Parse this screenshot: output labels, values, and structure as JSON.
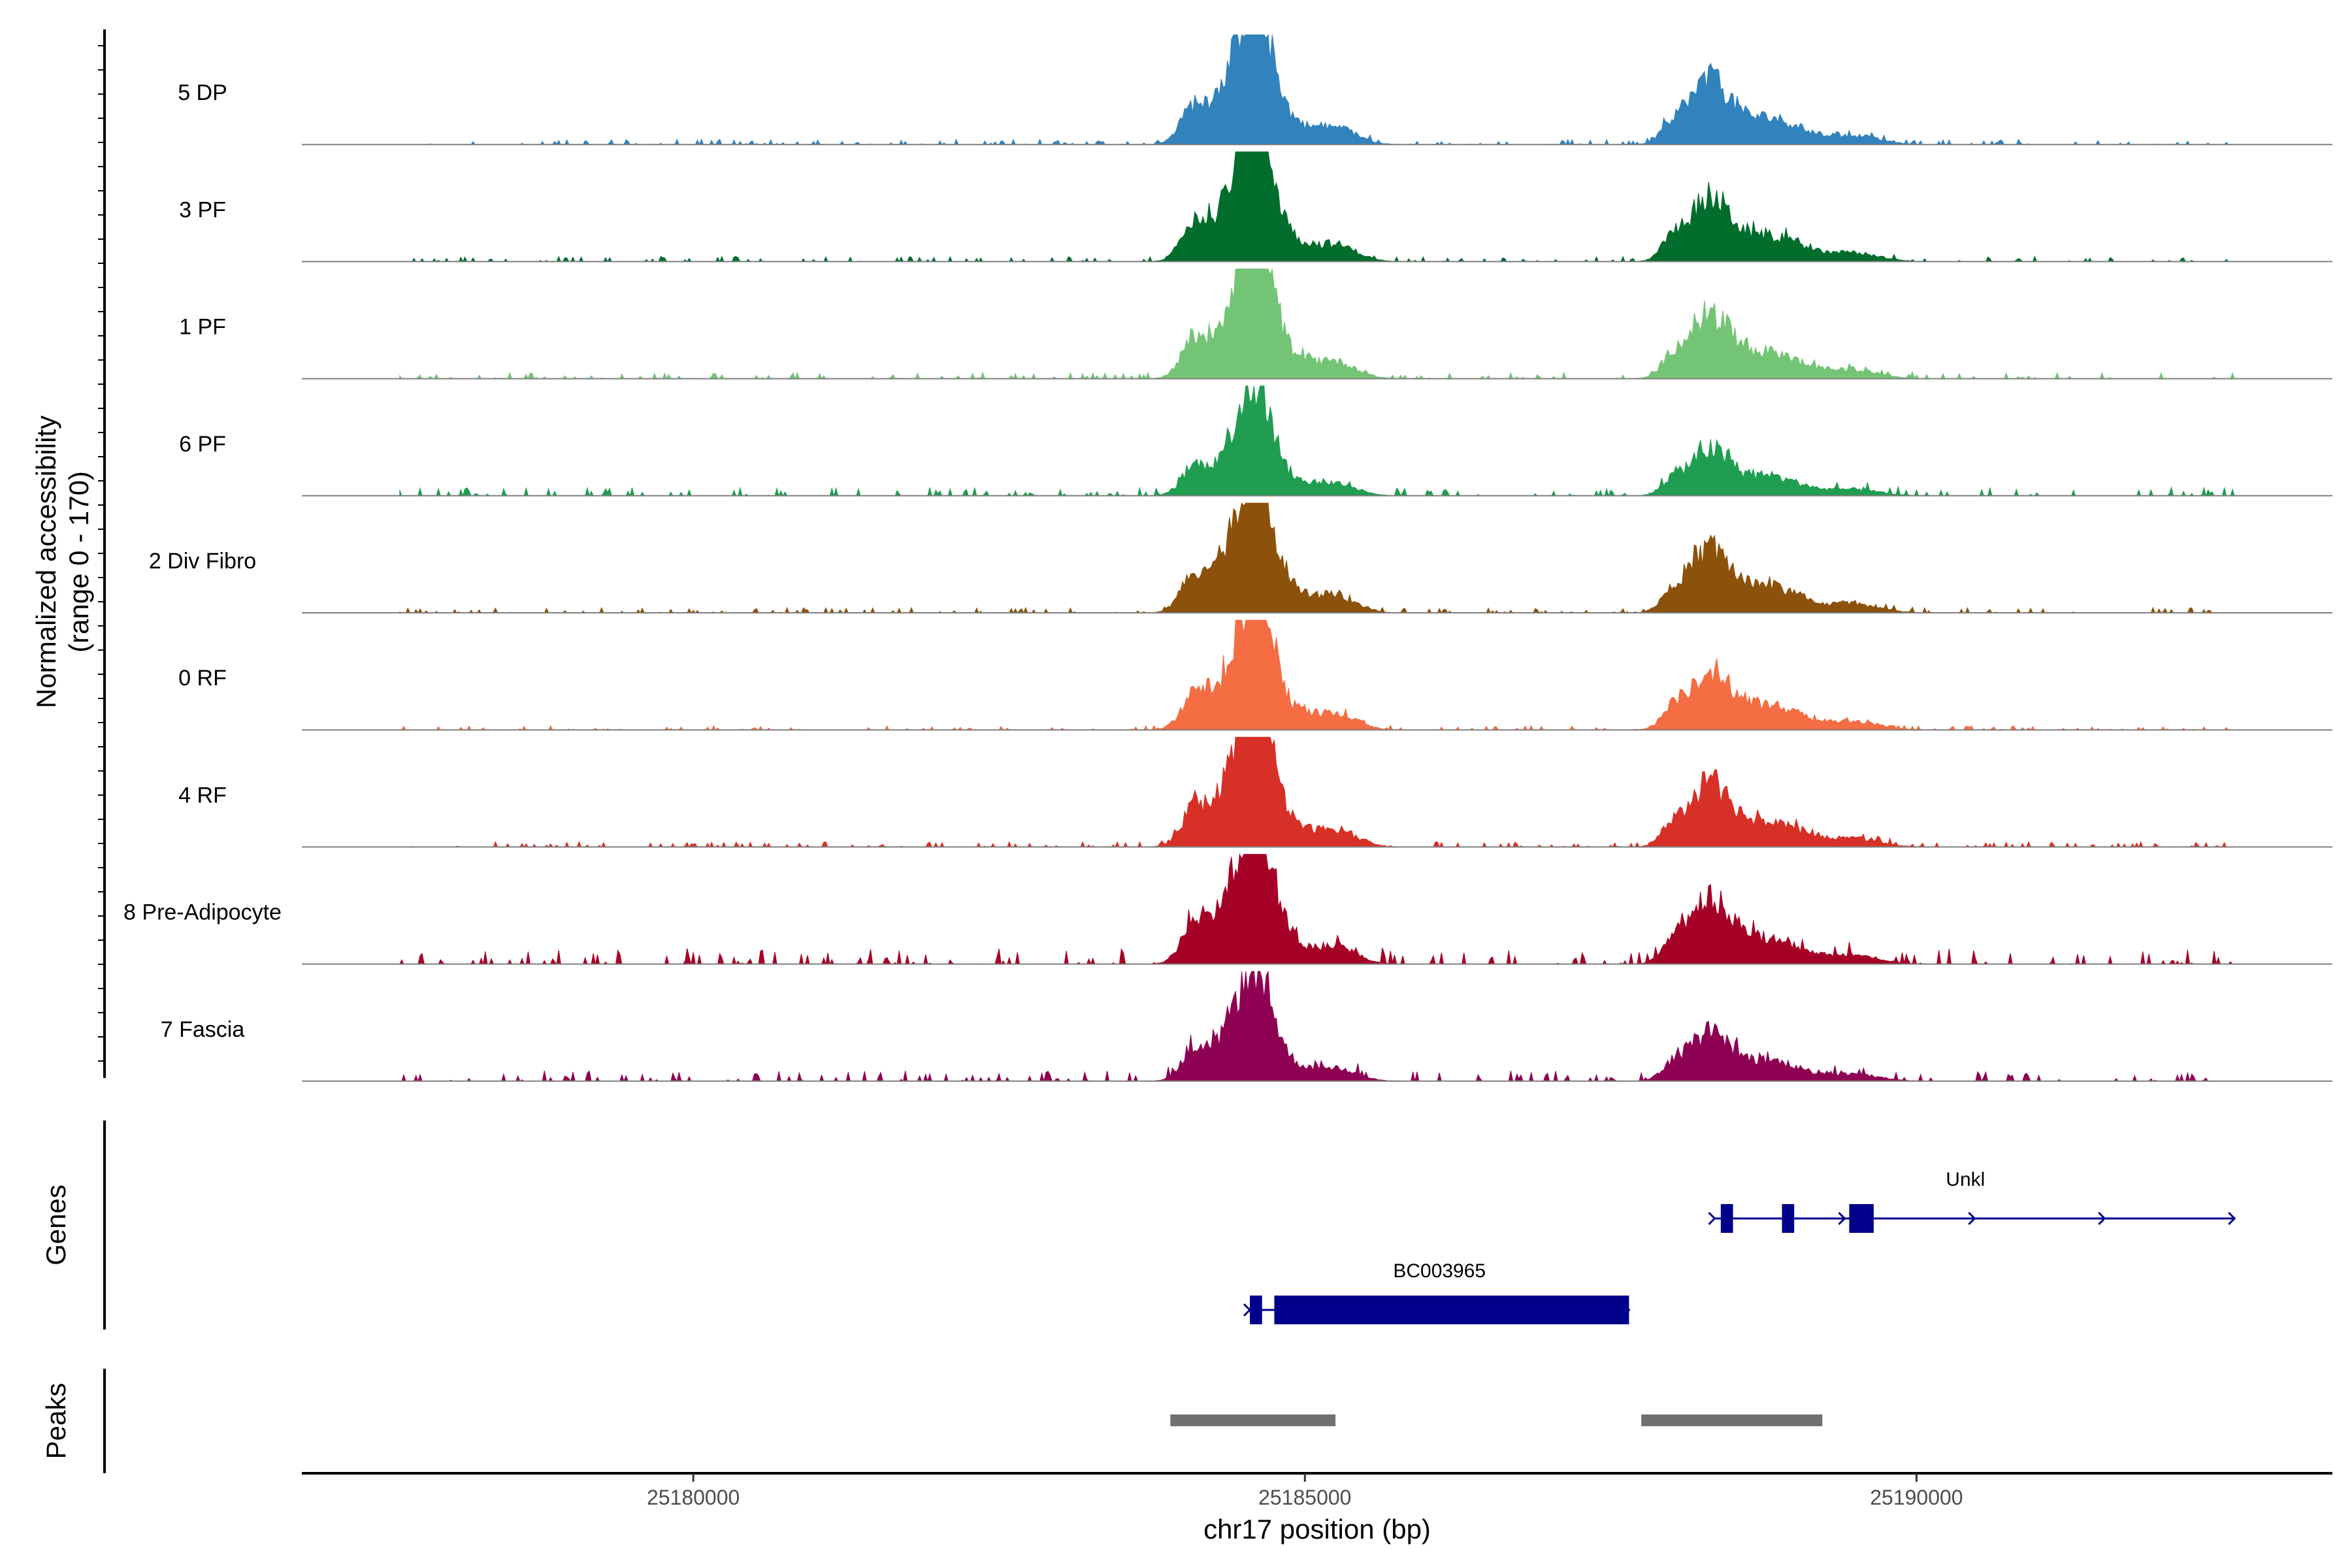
{
  "chart_data": {
    "type": "area",
    "plot": "genome coverage track",
    "y_axis_title_line1": "Normalized accessibility",
    "y_axis_title_line2": "(range 0 - 170)",
    "y_range": [
      0,
      170
    ],
    "x_axis_title": "chr17 position (bp)",
    "x_range": [
      25176800,
      25193400
    ],
    "x_ticks": [
      25180000,
      25185000,
      25190000
    ],
    "x_tick_labels": [
      "25180000",
      "25185000",
      "25190000"
    ],
    "tracks": [
      {
        "name": "5 DP",
        "color": "#3182bd",
        "scale": 1.0,
        "noise": 0.05
      },
      {
        "name": "3 PF",
        "color": "#006d2c",
        "scale": 1.0,
        "noise": 0.05
      },
      {
        "name": "1 PF",
        "color": "#74c476",
        "scale": 1.0,
        "noise": 0.06
      },
      {
        "name": "6 PF",
        "color": "#1f9e51",
        "scale": 0.72,
        "noise": 0.08
      },
      {
        "name": "2 Div Fibro",
        "color": "#8c510a",
        "scale": 1.0,
        "noise": 0.05
      },
      {
        "name": "0 RF",
        "color": "#f46d43",
        "scale": 0.93,
        "noise": 0.04
      },
      {
        "name": "4 RF",
        "color": "#d73027",
        "scale": 1.0,
        "noise": 0.05
      },
      {
        "name": "8 Pre-Adipocyte",
        "color": "#a50026",
        "scale": 1.0,
        "noise": 0.15
      },
      {
        "name": "7 Fascia",
        "color": "#8e0152",
        "scale": 0.77,
        "noise": 0.1
      }
    ],
    "signal_peaks": [
      {
        "center": 25184500,
        "width_bp": 1100,
        "description": "main accessibility peak"
      },
      {
        "center": 25188350,
        "width_bp": 1300,
        "description": "secondary accessibility peak"
      }
    ],
    "genes_title": "Genes",
    "genes": [
      {
        "name": "Unkl",
        "start": 25188350,
        "end": 25192600,
        "strand": "+",
        "exons": [
          [
            25188400,
            25188500
          ],
          [
            25188900,
            25189000
          ],
          [
            25189450,
            25189650
          ]
        ]
      },
      {
        "name": "BC003965",
        "start": 25184550,
        "end": 25187650,
        "strand": "+",
        "exons": [
          [
            25184550,
            25184650
          ],
          [
            25184750,
            25187650
          ]
        ]
      }
    ],
    "peaks_title": "Peaks",
    "peaks": [
      {
        "start": 25183900,
        "end": 25185250
      },
      {
        "start": 25187750,
        "end": 25189230
      }
    ]
  }
}
